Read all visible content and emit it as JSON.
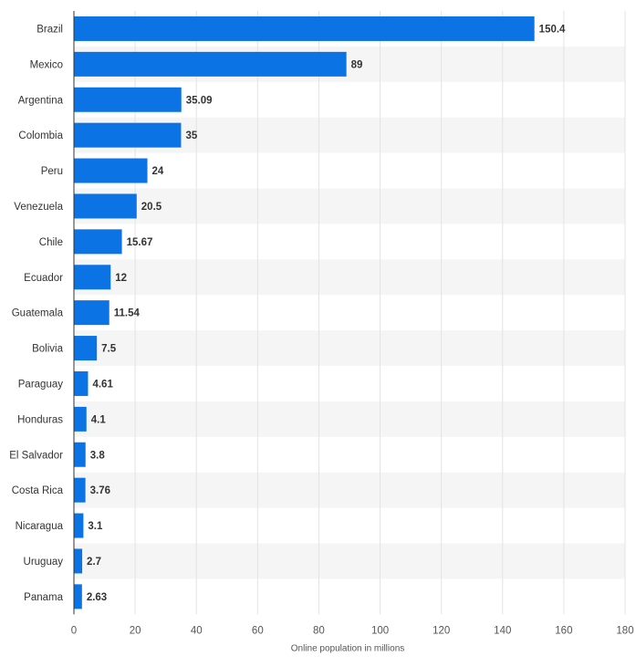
{
  "chart_data": {
    "type": "bar",
    "orientation": "horizontal",
    "title": "",
    "xlabel": "Online population in millions",
    "ylabel": "",
    "xlim": [
      0,
      180
    ],
    "ticks": [
      0,
      20,
      40,
      60,
      80,
      100,
      120,
      140,
      160,
      180
    ],
    "grid": true,
    "legend": "none",
    "categories": [
      "Brazil",
      "Mexico",
      "Argentina",
      "Colombia",
      "Peru",
      "Venezuela",
      "Chile",
      "Ecuador",
      "Guatemala",
      "Bolivia",
      "Paraguay",
      "Honduras",
      "El Salvador",
      "Costa Rica",
      "Nicaragua",
      "Uruguay",
      "Panama"
    ],
    "values": [
      150.4,
      89,
      35.09,
      35,
      24,
      20.5,
      15.67,
      12,
      11.54,
      7.5,
      4.61,
      4.1,
      3.8,
      3.76,
      3.1,
      2.7,
      2.63
    ],
    "value_labels": [
      "150.4",
      "89",
      "35.09",
      "35",
      "24",
      "20.5",
      "15.67",
      "12",
      "11.54",
      "7.5",
      "4.61",
      "4.1",
      "3.8",
      "3.76",
      "3.1",
      "2.7",
      "2.63"
    ],
    "colors": {
      "bar": "#0b73e3",
      "stripe": "#f5f5f5",
      "grid": "#e3e3e3",
      "axis": "#333333"
    }
  }
}
